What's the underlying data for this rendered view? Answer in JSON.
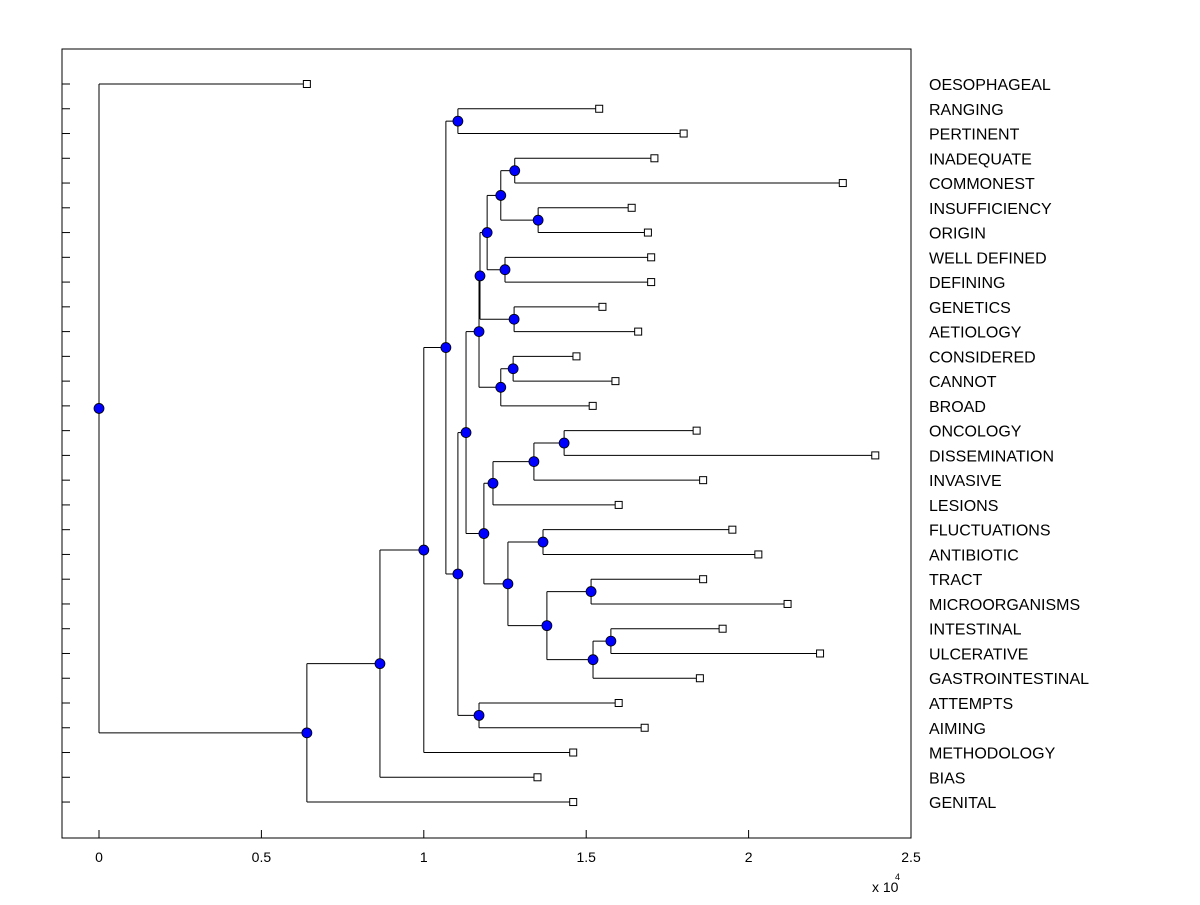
{
  "chart_data": {
    "type": "dendrogram",
    "orientation": "left-to-right",
    "xlabel_multiplier": "x 10",
    "xlabel_exponent": "4",
    "xlim": [
      -0.115,
      2.5
    ],
    "xticks": [
      0,
      0.5,
      1,
      1.5,
      2,
      2.5
    ],
    "xtick_labels": [
      "0",
      "0.5",
      "1",
      "1.5",
      "2",
      "2.5"
    ],
    "node_color": "#0000ff",
    "leaves": [
      "OESOPHAGEAL",
      "RANGING",
      "PERTINENT",
      "INADEQUATE",
      "COMMONEST",
      "INSUFFICIENCY",
      "ORIGIN",
      "WELL DEFINED",
      "DEFINING",
      "GENETICS",
      "AETIOLOGY",
      "CONSIDERED",
      "CANNOT",
      "BROAD",
      "ONCOLOGY",
      "DISSEMINATION",
      "INVASIVE",
      "LESIONS",
      "FLUCTUATIONS",
      "ANTIBIOTIC",
      "TRACT",
      "MICROORGANISMS",
      "INTESTINAL",
      "ULCERATIVE",
      "GASTROINTESTINAL",
      "ATTEMPTS",
      "AIMING",
      "METHODOLOGY",
      "BIAS",
      "GENITAL"
    ],
    "tree": {
      "h": 0,
      "c": [
        {
          "leaf": 0,
          "h": 0.64
        },
        {
          "h": 0.64,
          "c": [
            {
              "h": 0.865,
              "c": [
                {
                  "h": 1.0,
                  "c": [
                    {
                      "h": 1.068,
                      "c": [
                        {
                          "h": 1.105,
                          "c": [
                            {
                              "leaf": 1,
                              "h": 1.54
                            },
                            {
                              "leaf": 2,
                              "h": 1.8
                            }
                          ]
                        },
                        {
                          "h": 1.105,
                          "c": [
                            {
                              "h": 1.13,
                              "c": [
                                {
                                  "h": 1.17,
                                  "c": [
                                    {
                                      "h": 1.173,
                                      "c": [
                                        {
                                          "h": 1.195,
                                          "c": [
                                            {
                                              "h": 1.237,
                                              "c": [
                                                {
                                                  "h": 1.28,
                                                  "c": [
                                                    {
                                                      "leaf": 3,
                                                      "h": 1.71
                                                    },
                                                    {
                                                      "leaf": 4,
                                                      "h": 2.29
                                                    }
                                                  ]
                                                },
                                                {
                                                  "h": 1.352,
                                                  "c": [
                                                    {
                                                      "leaf": 5,
                                                      "h": 1.64
                                                    },
                                                    {
                                                      "leaf": 6,
                                                      "h": 1.69
                                                    }
                                                  ]
                                                }
                                              ]
                                            },
                                            {
                                              "h": 1.25,
                                              "c": [
                                                {
                                                  "leaf": 7,
                                                  "h": 1.7
                                                },
                                                {
                                                  "leaf": 8,
                                                  "h": 1.7
                                                }
                                              ]
                                            }
                                          ]
                                        },
                                        {
                                          "h": 1.278,
                                          "c": [
                                            {
                                              "leaf": 9,
                                              "h": 1.55
                                            },
                                            {
                                              "leaf": 10,
                                              "h": 1.66
                                            }
                                          ]
                                        }
                                      ]
                                    },
                                    {
                                      "h": 1.237,
                                      "c": [
                                        {
                                          "h": 1.275,
                                          "c": [
                                            {
                                              "leaf": 11,
                                              "h": 1.47
                                            },
                                            {
                                              "leaf": 12,
                                              "h": 1.59
                                            }
                                          ]
                                        },
                                        {
                                          "leaf": 13,
                                          "h": 1.52
                                        }
                                      ]
                                    }
                                  ]
                                },
                                {
                                  "h": 1.185,
                                  "c": [
                                    {
                                      "h": 1.213,
                                      "c": [
                                        {
                                          "h": 1.339,
                                          "c": [
                                            {
                                              "h": 1.432,
                                              "c": [
                                                {
                                                  "leaf": 14,
                                                  "h": 1.84
                                                },
                                                {
                                                  "leaf": 15,
                                                  "h": 2.39
                                                }
                                              ]
                                            },
                                            {
                                              "leaf": 16,
                                              "h": 1.86
                                            }
                                          ]
                                        },
                                        {
                                          "leaf": 17,
                                          "h": 1.6
                                        }
                                      ]
                                    },
                                    {
                                      "h": 1.259,
                                      "c": [
                                        {
                                          "h": 1.367,
                                          "c": [
                                            {
                                              "leaf": 18,
                                              "h": 1.95
                                            },
                                            {
                                              "leaf": 19,
                                              "h": 2.03
                                            }
                                          ]
                                        },
                                        {
                                          "h": 1.379,
                                          "c": [
                                            {
                                              "h": 1.515,
                                              "c": [
                                                {
                                                  "leaf": 20,
                                                  "h": 1.86
                                                },
                                                {
                                                  "leaf": 21,
                                                  "h": 2.12
                                                }
                                              ]
                                            },
                                            {
                                              "h": 1.521,
                                              "c": [
                                                {
                                                  "h": 1.576,
                                                  "c": [
                                                    {
                                                      "leaf": 22,
                                                      "h": 1.92
                                                    },
                                                    {
                                                      "leaf": 23,
                                                      "h": 2.22
                                                    }
                                                  ]
                                                },
                                                {
                                                  "leaf": 24,
                                                  "h": 1.85
                                                }
                                              ]
                                            }
                                          ]
                                        }
                                      ]
                                    }
                                  ]
                                }
                              ]
                            },
                            {
                              "h": 1.17,
                              "c": [
                                {
                                  "leaf": 25,
                                  "h": 1.6
                                },
                                {
                                  "leaf": 26,
                                  "h": 1.68
                                }
                              ]
                            }
                          ]
                        }
                      ]
                    },
                    {
                      "leaf": 27,
                      "h": 1.46
                    }
                  ]
                },
                {
                  "leaf": 28,
                  "h": 1.35
                }
              ]
            },
            {
              "leaf": 29,
              "h": 1.46
            }
          ]
        }
      ]
    }
  }
}
